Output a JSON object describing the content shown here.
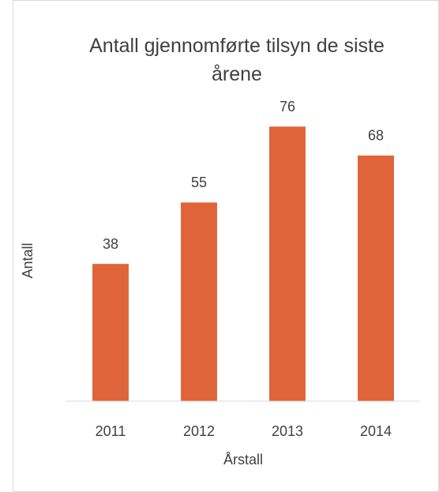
{
  "chart_data": {
    "type": "bar",
    "title": "Antall gjennomførte tilsyn de siste årene",
    "x_label": "Årstall",
    "y_label": "Antall",
    "categories": [
      "2011",
      "2012",
      "2013",
      "2014"
    ],
    "values": [
      38,
      55,
      76,
      68
    ],
    "color": "#e06439",
    "ylim": [
      0,
      80
    ]
  }
}
